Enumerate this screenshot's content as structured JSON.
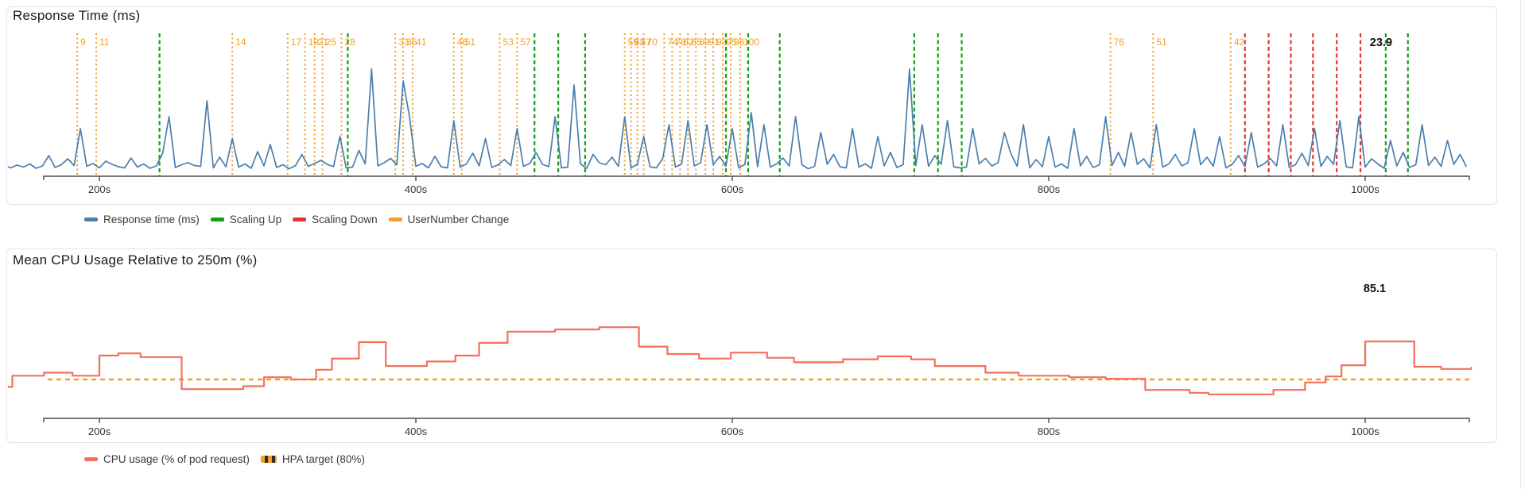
{
  "colors": {
    "response_line": "#4a7eae",
    "scaling_up": "#12a012",
    "scaling_down": "#e23434",
    "user_change": "#f0a02c",
    "cpu_line": "#f4705a",
    "hpa_target": "#f0a02c",
    "axis": "#4a4a4a",
    "tick_text": "#333333",
    "value_text": "#111111"
  },
  "chart_data": [
    {
      "type": "line",
      "title": "Response Time (ms)",
      "x_unit": "s",
      "xlim": [
        140,
        1067
      ],
      "ylim": [
        0,
        380
      ],
      "ticks": [
        {
          "t": 200,
          "label": "200s"
        },
        {
          "t": 400,
          "label": "400s"
        },
        {
          "t": 600,
          "label": "600s"
        },
        {
          "t": 800,
          "label": "800s"
        },
        {
          "t": 1000,
          "label": "1000s"
        }
      ],
      "value_label": {
        "text": "23.9",
        "t": 1010
      },
      "series": {
        "name": "Response time (ms)",
        "t_start": 140,
        "t_step": 4,
        "values": [
          24,
          21,
          28,
          23,
          31,
          20,
          26,
          52,
          22,
          29,
          44,
          27,
          120,
          25,
          32,
          21,
          38,
          30,
          24,
          21,
          46,
          23,
          31,
          20,
          26,
          58,
          150,
          22,
          29,
          34,
          27,
          25,
          190,
          21,
          48,
          24,
          95,
          23,
          31,
          20,
          62,
          26,
          80,
          22,
          29,
          19,
          27,
          55,
          25,
          32,
          40,
          30,
          24,
          100,
          21,
          23,
          65,
          31,
          270,
          26,
          34,
          45,
          29,
          240,
          150,
          25,
          32,
          21,
          50,
          24,
          21,
          140,
          23,
          31,
          58,
          26,
          95,
          22,
          29,
          42,
          27,
          120,
          25,
          32,
          60,
          30,
          24,
          150,
          21,
          23,
          230,
          31,
          20,
          55,
          34,
          29,
          48,
          25,
          150,
          21,
          30,
          100,
          24,
          21,
          44,
          130,
          23,
          31,
          140,
          26,
          34,
          130,
          29,
          50,
          25,
          120,
          21,
          30,
          160,
          24,
          130,
          23,
          31,
          46,
          26,
          150,
          29,
          19,
          25,
          110,
          30,
          55,
          24,
          21,
          120,
          23,
          31,
          20,
          100,
          26,
          60,
          22,
          29,
          270,
          27,
          130,
          25,
          52,
          30,
          140,
          24,
          21,
          23,
          120,
          31,
          45,
          26,
          34,
          110,
          58,
          25,
          130,
          21,
          42,
          24,
          100,
          23,
          31,
          20,
          120,
          26,
          50,
          22,
          29,
          150,
          27,
          60,
          25,
          110,
          30,
          44,
          21,
          130,
          23,
          31,
          55,
          26,
          34,
          120,
          29,
          48,
          25,
          100,
          21,
          30,
          52,
          24,
          110,
          23,
          31,
          45,
          26,
          130,
          22,
          29,
          58,
          27,
          120,
          25,
          50,
          30,
          140,
          24,
          21,
          150,
          23,
          44,
          31,
          20,
          90,
          26,
          60,
          22,
          29,
          130,
          27,
          48,
          25,
          90,
          30,
          55,
          23.9
        ]
      },
      "events": {
        "scaling_up": {
          "label": "Scaling Up",
          "times": [
            238,
            357,
            475,
            490,
            507,
            596,
            610,
            630,
            715,
            730,
            745,
            1013,
            1027
          ]
        },
        "scaling_down": {
          "label": "Scaling Down",
          "times": [
            924,
            939,
            953,
            967,
            982,
            997
          ]
        },
        "user_change": {
          "label": "UserNumber Change",
          "items": [
            {
              "t": 186,
              "n": 9
            },
            {
              "t": 198,
              "n": 11
            },
            {
              "t": 284,
              "n": 14
            },
            {
              "t": 319,
              "n": 17
            },
            {
              "t": 330,
              "n": 19
            },
            {
              "t": 336,
              "n": 21
            },
            {
              "t": 341,
              "n": 25
            },
            {
              "t": 353,
              "n": 28
            },
            {
              "t": 387,
              "n": 33
            },
            {
              "t": 392,
              "n": 35
            },
            {
              "t": 398,
              "n": 41
            },
            {
              "t": 424,
              "n": 46
            },
            {
              "t": 429,
              "n": 51
            },
            {
              "t": 453,
              "n": 53
            },
            {
              "t": 464,
              "n": 57
            },
            {
              "t": 532,
              "n": 59
            },
            {
              "t": 536,
              "n": 63
            },
            {
              "t": 540,
              "n": 67
            },
            {
              "t": 544,
              "n": 70
            },
            {
              "t": 557,
              "n": 74
            },
            {
              "t": 562,
              "n": 78
            },
            {
              "t": 567,
              "n": 82
            },
            {
              "t": 572,
              "n": 85
            },
            {
              "t": 577,
              "n": 89
            },
            {
              "t": 583,
              "n": 91
            },
            {
              "t": 588,
              "n": 93
            },
            {
              "t": 594,
              "n": 95
            },
            {
              "t": 599,
              "n": 98
            },
            {
              "t": 605,
              "n": 100
            },
            {
              "t": 839,
              "n": 76
            },
            {
              "t": 866,
              "n": 51
            },
            {
              "t": 915,
              "n": 42
            }
          ]
        }
      },
      "legend": [
        {
          "label": "Response time (ms)",
          "color": "#4a7eae",
          "style": "solid"
        },
        {
          "label": "Scaling Up",
          "color": "#12a012",
          "style": "solid"
        },
        {
          "label": "Scaling Down",
          "color": "#e23434",
          "style": "solid"
        },
        {
          "label": "UserNumber Change",
          "color": "#f0a02c",
          "style": "solid"
        }
      ]
    },
    {
      "type": "step-line",
      "title": "Mean CPU Usage Relative to 250m (%)",
      "x_unit": "s",
      "xlim": [
        140,
        1067
      ],
      "ticks": [
        {
          "t": 200,
          "label": "200s"
        },
        {
          "t": 400,
          "label": "400s"
        },
        {
          "t": 600,
          "label": "600s"
        },
        {
          "t": 800,
          "label": "800s"
        },
        {
          "t": 1000,
          "label": "1000s"
        }
      ],
      "value_label": {
        "text": "85.1",
        "t": 1006
      },
      "target": {
        "label": "HPA target (80%)",
        "value": 80
      },
      "series": {
        "name": "CPU usage (% of pod request)",
        "points": [
          [
            140,
            79.0
          ],
          [
            145,
            80.5
          ],
          [
            165,
            80.9
          ],
          [
            183,
            80.5
          ],
          [
            200,
            83.2
          ],
          [
            212,
            83.5
          ],
          [
            226,
            83.0
          ],
          [
            252,
            78.7
          ],
          [
            291,
            79.1
          ],
          [
            304,
            80.3
          ],
          [
            321,
            80.0
          ],
          [
            337,
            81.3
          ],
          [
            347,
            82.8
          ],
          [
            364,
            85.0
          ],
          [
            381,
            81.8
          ],
          [
            407,
            82.4
          ],
          [
            425,
            83.2
          ],
          [
            440,
            84.9
          ],
          [
            458,
            86.4
          ],
          [
            488,
            86.7
          ],
          [
            516,
            87.0
          ],
          [
            541,
            84.4
          ],
          [
            559,
            83.4
          ],
          [
            579,
            82.8
          ],
          [
            599,
            83.6
          ],
          [
            622,
            82.9
          ],
          [
            639,
            82.3
          ],
          [
            670,
            82.7
          ],
          [
            692,
            83.1
          ],
          [
            713,
            82.7
          ],
          [
            728,
            81.8
          ],
          [
            760,
            80.9
          ],
          [
            781,
            80.5
          ],
          [
            813,
            80.3
          ],
          [
            836,
            80.1
          ],
          [
            861,
            78.6
          ],
          [
            889,
            78.2
          ],
          [
            901,
            78.0
          ],
          [
            942,
            78.6
          ],
          [
            962,
            79.6
          ],
          [
            975,
            80.4
          ],
          [
            985,
            81.9
          ],
          [
            1000,
            85.1
          ],
          [
            1031,
            81.7
          ],
          [
            1048,
            81.4
          ],
          [
            1067,
            81.6
          ]
        ]
      },
      "legend": [
        {
          "label": "CPU usage (% of pod request)",
          "color": "#f4705a",
          "style": "solid"
        },
        {
          "label": "HPA target (80%)",
          "color": "#f0a02c",
          "style": "dashed-dark"
        }
      ]
    }
  ]
}
